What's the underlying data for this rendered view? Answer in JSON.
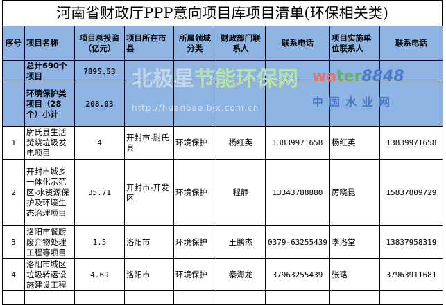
{
  "title": "河南省财政厅PPP意向项目库项目清单(环保相关类)",
  "headers": [
    "序号",
    "项目名称",
    "项目总投资（亿元）",
    "项目所在市县",
    "所属领域分类",
    "财政部门联系人",
    "联系电话",
    "项目实施单位联系人",
    "联系电话"
  ],
  "total": {
    "label": "总计690个项目",
    "investment": "7895.53"
  },
  "subtotal": {
    "label": "环境保护类项目（28个）小计",
    "investment": "208.03"
  },
  "rows": [
    {
      "no": "1",
      "name": "尉氏县生活焚烧垃圾发电项目",
      "investment": "4",
      "location": "开封市-尉氏县",
      "field": "环境保护",
      "finance_contact": "杨红英",
      "finance_phone": "13839971658",
      "unit_contact": "杨红英",
      "unit_phone": "13839971658"
    },
    {
      "no": "2",
      "name": "开封市城乡一体化示范区-水资源保护及环境生态治理项目",
      "investment": "35.71",
      "location": "开封市-开发区",
      "field": "环境保护",
      "finance_contact": "程静",
      "finance_phone": "13343788880",
      "unit_contact": "厉晓昆",
      "unit_phone": "15837809729"
    },
    {
      "no": "3",
      "name": "洛阳市餐厨废弃物处理工程等项目",
      "investment": "1.5",
      "location": "洛阳市",
      "field": "环境保护",
      "finance_contact": "王鹏杰",
      "finance_phone": "0379-63255439",
      "unit_contact": "李洛堂",
      "unit_phone": "13837958319"
    },
    {
      "no": "4",
      "name": "洛阳市城区垃圾转运设施建设工程",
      "investment": "4.69",
      "location": "洛阳市",
      "field": "环境保护",
      "finance_contact": "秦海龙",
      "finance_phone": "37963255439",
      "unit_contact": "张珞",
      "unit_phone": "37963911681"
    }
  ],
  "watermarks": {
    "site1": "北极星节能环保网",
    "site1_url": "http://huanbao.bjx.com.cn",
    "site2": "water8848",
    "site2_cn": "中国水业网"
  }
}
